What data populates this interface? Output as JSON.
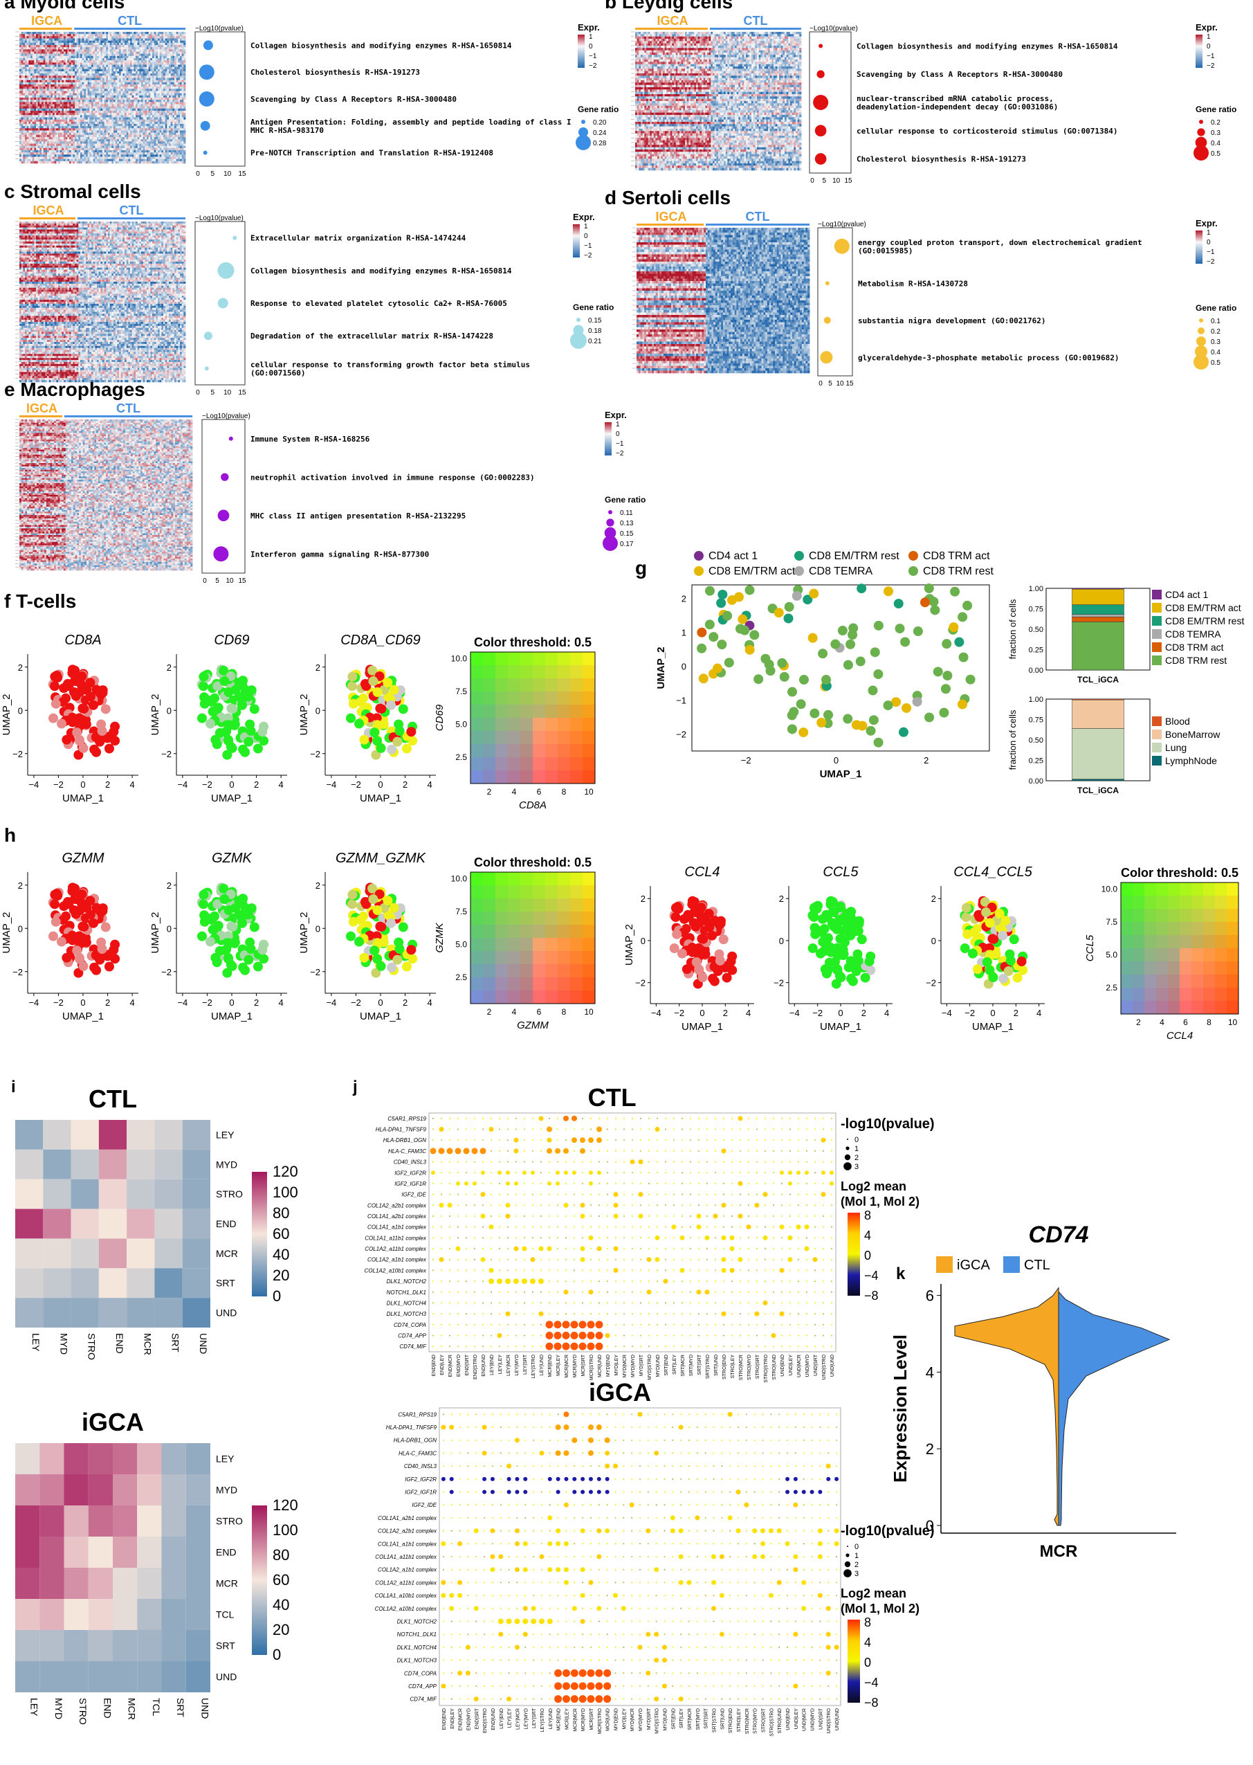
{
  "colors": {
    "igca": "#f5a623",
    "ctl": "#4a90e2",
    "heat_hi": "#b2182b",
    "heat_mid": "#f7f7f7",
    "heat_lo": "#2166ac",
    "red": "#ee1111",
    "green": "#22ee22",
    "yellow": "#f1f11a",
    "grey": "#cccccc"
  },
  "chart_data": [
    {
      "type": "heatmap",
      "panel": "a",
      "title": "Myoid cells",
      "groups": [
        "IGCA",
        "CTL"
      ],
      "enrich_axis_label": "−Log10(pvalue)",
      "xticks": [
        "0",
        "5",
        "10",
        "15"
      ],
      "expr_legend_title": "Expr.",
      "expr_ticks": [
        "1",
        "0",
        "−1",
        "−2"
      ],
      "ratio_legend_title": "Gene ratio",
      "ratio_ticks": [
        "0.20",
        "0.24",
        "0.28"
      ],
      "terms": [
        {
          "label": "Collagen biosynthesis and modifying enzymes R-HSA-1650814",
          "neglog10p": 3.5,
          "ratio": 0.24
        },
        {
          "label": "Cholesterol biosynthesis R-HSA-191273",
          "neglog10p": 3.0,
          "ratio": 0.28
        },
        {
          "label": "Scavenging by Class A Receptors R-HSA-3000480",
          "neglog10p": 3.0,
          "ratio": 0.28
        },
        {
          "label": "Antigen Presentation: Folding, assembly and peptide loading of class I MHC R-HSA-983170",
          "neglog10p": 2.5,
          "ratio": 0.24
        },
        {
          "label": "Pre-NOTCH Transcription and Translation R-HSA-1912408",
          "neglog10p": 2.5,
          "ratio": 0.2
        }
      ]
    },
    {
      "type": "heatmap",
      "panel": "b",
      "title": "Leydig cells",
      "groups": [
        "IGCA",
        "CTL"
      ],
      "enrich_axis_label": "−Log10(pvalue)",
      "xticks": [
        "0",
        "5",
        "10",
        "15"
      ],
      "expr_legend_title": "Expr.",
      "expr_ticks": [
        "1",
        "0",
        "−1",
        "−2"
      ],
      "ratio_legend_title": "Gene ratio",
      "ratio_ticks": [
        "0.2",
        "0.3",
        "0.4",
        "0.5"
      ],
      "terms": [
        {
          "label": "Collagen biosynthesis and modifying enzymes R-HSA-1650814",
          "neglog10p": 3.5,
          "ratio": 0.2
        },
        {
          "label": "Scavenging by Class A Receptors R-HSA-3000480",
          "neglog10p": 3.5,
          "ratio": 0.3
        },
        {
          "label": "nuclear-transcribed mRNA catabolic process, deadenylation-independent decay (GO:0031086)",
          "neglog10p": 3.5,
          "ratio": 0.5
        },
        {
          "label": "cellular response to corticosteroid stimulus (GO:0071384)",
          "neglog10p": 3.5,
          "ratio": 0.4
        },
        {
          "label": "Cholesterol biosynthesis R-HSA-191273",
          "neglog10p": 3.5,
          "ratio": 0.4
        }
      ]
    },
    {
      "type": "heatmap",
      "panel": "c",
      "title": "Stromal cells",
      "groups": [
        "IGCA",
        "CTL"
      ],
      "enrich_axis_label": "−Log10(pvalue)",
      "xticks": [
        "0",
        "5",
        "10",
        "15"
      ],
      "expr_legend_title": "Expr.",
      "expr_ticks": [
        "1",
        "0",
        "−1",
        "−2"
      ],
      "ratio_legend_title": "Gene ratio",
      "ratio_ticks": [
        "0.15",
        "0.18",
        "0.21"
      ],
      "terms": [
        {
          "label": "Extracellular matrix organization R-HSA-1474244",
          "neglog10p": 12.5,
          "ratio": 0.15
        },
        {
          "label": "Collagen biosynthesis and modifying enzymes R-HSA-1650814",
          "neglog10p": 9.5,
          "ratio": 0.21
        },
        {
          "label": "Response to elevated platelet cytosolic Ca2+ R-HSA-76005",
          "neglog10p": 8.5,
          "ratio": 0.18
        },
        {
          "label": "Degradation of the extracellular matrix R-HSA-1474228",
          "neglog10p": 3.5,
          "ratio": 0.17
        },
        {
          "label": "cellular response to transforming growth factor beta stimulus (GO:0071560)",
          "neglog10p": 3.0,
          "ratio": 0.15
        }
      ]
    },
    {
      "type": "heatmap",
      "panel": "d",
      "title": "Sertoli cells",
      "groups": [
        "IGCA",
        "CTL"
      ],
      "enrich_axis_label": "−Log10(pvalue)",
      "xticks": [
        "0",
        "5",
        "10",
        "15"
      ],
      "expr_legend_title": "Expr.",
      "expr_ticks": [
        "1",
        "0",
        "−1",
        "−2"
      ],
      "ratio_legend_title": "Gene ratio",
      "ratio_ticks": [
        "0.1",
        "0.2",
        "0.3",
        "0.4",
        "0.5"
      ],
      "terms": [
        {
          "label": "energy coupled proton transport, down electrochemical gradient (GO:0015985)",
          "neglog10p": 11.0,
          "ratio": 0.5
        },
        {
          "label": "Metabolism R-HSA-1430728",
          "neglog10p": 3.5,
          "ratio": 0.1
        },
        {
          "label": "substantia nigra development (GO:0021762)",
          "neglog10p": 3.5,
          "ratio": 0.2
        },
        {
          "label": "glyceraldehyde-3-phosphate metabolic process (GO:0019682)",
          "neglog10p": 3.0,
          "ratio": 0.4
        }
      ]
    },
    {
      "type": "heatmap",
      "panel": "e",
      "title": "Macrophages",
      "groups": [
        "IGCA",
        "CTL"
      ],
      "enrich_axis_label": "−Log10(pvalue)",
      "xticks": [
        "0",
        "5",
        "10",
        "15"
      ],
      "expr_legend_title": "Expr.",
      "expr_ticks": [
        "1",
        "0",
        "−1",
        "−2"
      ],
      "ratio_legend_title": "Gene ratio",
      "ratio_ticks": [
        "0.11",
        "0.13",
        "0.15",
        "0.17"
      ],
      "terms": [
        {
          "label": "Immune System R-HSA-168256",
          "neglog10p": 10.5,
          "ratio": 0.11
        },
        {
          "label": "neutrophil activation involved in immune response (GO:0002283)",
          "neglog10p": 8.0,
          "ratio": 0.13
        },
        {
          "label": "MHC class II antigen presentation R-HSA-2132295",
          "neglog10p": 7.5,
          "ratio": 0.15
        },
        {
          "label": "Interferon gamma signaling R-HSA-877300",
          "neglog10p": 6.5,
          "ratio": 0.17
        }
      ]
    },
    {
      "type": "scatter",
      "panel": "f",
      "title": "T-cells",
      "plots": [
        "CD8A",
        "CD69",
        "CD8A_CD69"
      ],
      "xlabel": "UMAP_1",
      "ylabel": "UMAP_2",
      "xticks": [
        "−4",
        "−2",
        "0",
        "2",
        "4"
      ],
      "yticks": [
        "2",
        "0",
        "−2"
      ],
      "xlim": [
        -4.5,
        4.5
      ],
      "ylim": [
        -3,
        2.6
      ],
      "blend_title": "Color threshold: 0.5",
      "blend_xlabel": "CD8A",
      "blend_ylabel": "CD69",
      "blend_xticks": [
        "2",
        "4",
        "6",
        "8",
        "10"
      ],
      "blend_yticks": [
        "10.0",
        "7.5",
        "5.0",
        "2.5"
      ]
    },
    {
      "type": "scatter",
      "panel": "g",
      "xlabel": "UMAP_1",
      "ylabel": "UMAP_2",
      "xticks": [
        "−2",
        "0",
        "2"
      ],
      "yticks": [
        "2",
        "1",
        "0",
        "−1",
        "−2"
      ],
      "xlim": [
        -3.2,
        3.4
      ],
      "ylim": [
        -2.5,
        2.4
      ],
      "legend": [
        {
          "name": "CD4 act 1",
          "color": "#7b2d8e"
        },
        {
          "name": "CD8 EM/TRM act",
          "color": "#e6b800"
        },
        {
          "name": "CD8 EM/TRM rest",
          "color": "#1a9e77"
        },
        {
          "name": "CD8 TEMRA",
          "color": "#aaaaaa"
        },
        {
          "name": "CD8 TRM act",
          "color": "#d95f02"
        },
        {
          "name": "CD8 TRM rest",
          "color": "#6ab04c"
        }
      ],
      "bar1": {
        "ylabel": "fraction of cells",
        "xlabel": "TCL_iGCA",
        "yticks": [
          "1.00",
          "0.75",
          "0.50",
          "0.25",
          "0.00"
        ],
        "stack": [
          {
            "name": "CD8 TRM rest",
            "value": 0.59,
            "color": "#6ab04c"
          },
          {
            "name": "CD8 TRM act",
            "value": 0.06,
            "color": "#d95f02"
          },
          {
            "name": "CD8 TEMRA",
            "value": 0.03,
            "color": "#aaaaaa"
          },
          {
            "name": "CD8 EM/TRM rest",
            "value": 0.12,
            "color": "#1a9e77"
          },
          {
            "name": "CD8 EM/TRM act",
            "value": 0.19,
            "color": "#e6b800"
          },
          {
            "name": "CD4 act 1",
            "value": 0.01,
            "color": "#7b2d8e"
          }
        ],
        "legend": [
          "CD4 act 1",
          "CD8 EM/TRM act",
          "CD8 EM/TRM rest",
          "CD8 TEMRA",
          "CD8 TRM act",
          "CD8 TRM rest"
        ]
      },
      "bar2": {
        "ylabel": "fraction of cells",
        "xlabel": "TCL_iGCA",
        "yticks": [
          "1.00",
          "0.75",
          "0.50",
          "0.25",
          "0.00"
        ],
        "stack": [
          {
            "name": "LymphNode",
            "value": 0.02,
            "color": "#0b6b72"
          },
          {
            "name": "Lung",
            "value": 0.62,
            "color": "#c6d8b8"
          },
          {
            "name": "BoneMarrow",
            "value": 0.35,
            "color": "#f2c7a0"
          },
          {
            "name": "Blood",
            "value": 0.01,
            "color": "#d9541e"
          }
        ],
        "legend": [
          {
            "name": "Blood",
            "color": "#d9541e"
          },
          {
            "name": "BoneMarrow",
            "color": "#f2c7a0"
          },
          {
            "name": "Lung",
            "color": "#c6d8b8"
          },
          {
            "name": "LymphNode",
            "color": "#0b6b72"
          }
        ]
      }
    },
    {
      "type": "scatter",
      "panel": "h",
      "plots": [
        "GZMM",
        "GZMK",
        "GZMM_GZMK"
      ],
      "plots2": [
        "CCL4",
        "CCL5",
        "CCL4_CCL5"
      ],
      "xlabel": "UMAP_1",
      "ylabel": "UMAP_2",
      "blend_title": "Color threshold: 0.5",
      "blend_xlabel": "GZMM",
      "blend_ylabel": "GZMK",
      "blend2_xlabel": "CCL4",
      "blend2_ylabel": "CCL5"
    },
    {
      "type": "heatmap",
      "panel": "i",
      "title_ctl": "CTL",
      "title_igca": "iGCA",
      "ctl_rows": [
        "LEY",
        "MYD",
        "STRO",
        "END",
        "MCR",
        "SRT",
        "UND"
      ],
      "ctl_cols": [
        "LEY",
        "MYD",
        "STRO",
        "END",
        "MCR",
        "SRT",
        "UND"
      ],
      "ctl_values": [
        [
          30,
          50,
          60,
          110,
          55,
          50,
          35
        ],
        [
          50,
          30,
          45,
          80,
          50,
          45,
          30
        ],
        [
          60,
          45,
          30,
          65,
          45,
          40,
          30
        ],
        [
          110,
          90,
          65,
          60,
          75,
          50,
          35
        ],
        [
          55,
          55,
          50,
          80,
          60,
          45,
          30
        ],
        [
          50,
          45,
          40,
          60,
          50,
          20,
          30
        ],
        [
          35,
          30,
          30,
          35,
          30,
          30,
          15
        ]
      ],
      "igca_rows": [
        "LEY",
        "MYD",
        "STRO",
        "END",
        "MCR",
        "TCL",
        "SRT",
        "UND"
      ],
      "igca_cols": [
        "LEY",
        "MYD",
        "STRO",
        "END",
        "MCR",
        "TCL",
        "SRT",
        "UND"
      ],
      "igca_values": [
        [
          55,
          75,
          105,
          100,
          95,
          75,
          35,
          30
        ],
        [
          85,
          90,
          110,
          105,
          85,
          70,
          40,
          35
        ],
        [
          110,
          105,
          75,
          95,
          90,
          60,
          40,
          30
        ],
        [
          110,
          100,
          70,
          60,
          80,
          55,
          35,
          30
        ],
        [
          105,
          100,
          85,
          75,
          55,
          50,
          35,
          30
        ],
        [
          70,
          75,
          60,
          65,
          55,
          40,
          30,
          30
        ],
        [
          40,
          40,
          35,
          40,
          35,
          35,
          30,
          25
        ],
        [
          30,
          30,
          30,
          30,
          30,
          30,
          25,
          20
        ]
      ],
      "scale_ticks": [
        "120",
        "100",
        "80",
        "60",
        "40",
        "20",
        "0"
      ]
    },
    {
      "type": "scatter",
      "panel": "j",
      "title_ctl": "CTL",
      "title_igca": "iGCA",
      "pairs_ctl": [
        "C5AR1_RPS19",
        "HLA-DPA1_TNFSF9",
        "HLA-DRB1_OGN",
        "HLA-C_FAM3C",
        "CD40_INSL3",
        "IGF2_IGF2R",
        "IGF2_IGF1R",
        "IGF2_IDE",
        "COL1A2_a2b1 complex",
        "COL1A1_a2b1 complex",
        "COL1A1_a1b1 complex",
        "COL1A1_a11b1 complex",
        "COL1A2_a11b1 complex",
        "COL1A2_a1b1 complex",
        "COL1A2_a10b1 complex",
        "DLK1_NOTCH2",
        "NOTCH1_DLK1",
        "DLK1_NOTCH4",
        "DLK1_NOTCH3",
        "CD74_COPA",
        "CD74_APP",
        "CD74_MIF"
      ],
      "pairs_igca": [
        "C5AR1_RPS19",
        "HLA-DPA1_TNFSF9",
        "HLA-DRB1_OGN",
        "HLA-C_FAM3C",
        "CD40_INSL3",
        "IGF2_IGF2R",
        "IGF2_IGF1R",
        "IGF2_IDE",
        "COL1A1_a2b1 complex",
        "COL1A2_a2b1 complex",
        "COL1A1_a1b1 complex",
        "COL1A1_a11b1 complex",
        "COL1A2_a1b1 complex",
        "COL1A2_a11b1 complex",
        "COL1A1_a10b1 complex",
        "COL1A2_a10b1 complex",
        "DLK1_NOTCH2",
        "NOTCH1_DLK1",
        "DLK1_NOTCH4",
        "DLK1_NOTCH3",
        "CD74_COPA",
        "CD74_APP",
        "CD74_MIF"
      ],
      "size_title": "-log10(pvalue)",
      "size_ticks": [
        "0",
        "1",
        "2",
        "3"
      ],
      "color_title": "Log2 mean",
      "color_subtitle": "(Mol 1, Mol 2)",
      "color_ticks": [
        "8",
        "4",
        "0",
        "−4",
        "−8"
      ]
    },
    {
      "type": "violin",
      "panel": "k",
      "title": "CD74",
      "legend": [
        "iGCA",
        "CTL"
      ],
      "ylabel": "Expression Level",
      "xlabel": "MCR",
      "yticks": [
        "6",
        "4",
        "2",
        "0"
      ],
      "ylim": [
        -0.2,
        6.3
      ]
    }
  ]
}
